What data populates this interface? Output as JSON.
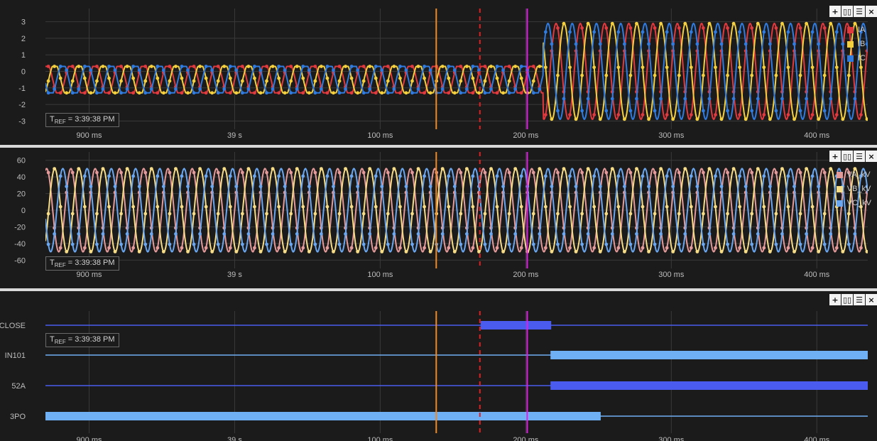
{
  "time_axis": {
    "ticks": [
      {
        "label": "900 ms",
        "t": -0.3
      },
      {
        "label": "39 s",
        "t": -0.2
      },
      {
        "label": "100 ms",
        "t": -0.1
      },
      {
        "label": "200 ms",
        "t": 0.0
      },
      {
        "label": "300 ms",
        "t": 0.1
      },
      {
        "label": "400 ms",
        "t": 0.2
      }
    ]
  },
  "tref_label_main": "T",
  "tref_label_sub": "REF",
  "tref_value": " = 3:39:38 PM",
  "controls": {
    "add": "+",
    "cols": "▯▯",
    "rows": "☰",
    "close": "×"
  },
  "cursors": [
    {
      "name": "cursor-orange",
      "t": -0.0615,
      "color": "#f08a24",
      "style": "solid"
    },
    {
      "name": "cursor-red",
      "t": -0.0315,
      "color": "#e02020",
      "style": "dashed"
    },
    {
      "name": "cursor-magenta",
      "t": 0.001,
      "color": "#e11de6",
      "style": "solid"
    }
  ],
  "chart_data": [
    {
      "type": "line",
      "name": "currents",
      "x_range": [
        -0.33,
        0.235
      ],
      "ylim": [
        -3.5,
        3.8
      ],
      "y_ticks": [
        3,
        2,
        1,
        0,
        -1,
        -2,
        -3
      ],
      "fault_time": 0.0,
      "series": [
        {
          "name": "IA",
          "color": "#e0393e",
          "pre_amp": 0.8,
          "pre_offset": -0.5,
          "post_amp": 2.9,
          "phase_deg": 0
        },
        {
          "name": "IB",
          "color": "#f4d03f",
          "pre_amp": 0.8,
          "pre_offset": -0.5,
          "post_amp": 2.9,
          "phase_deg": -120
        },
        {
          "name": "IC",
          "color": "#2f7be0",
          "pre_amp": 0.8,
          "pre_offset": -0.5,
          "post_amp": 2.9,
          "phase_deg": 120
        }
      ]
    },
    {
      "type": "line",
      "name": "voltages",
      "x_range": [
        -0.33,
        0.235
      ],
      "ylim": [
        -70,
        70
      ],
      "y_ticks": [
        60,
        40,
        20,
        0,
        -20,
        -40,
        -60
      ],
      "series": [
        {
          "name": "VA_kV",
          "color": "#e59a9a",
          "amp": 50,
          "phase_deg": 0
        },
        {
          "name": "VB_kV",
          "color": "#f6dc86",
          "amp": 50,
          "phase_deg": -120
        },
        {
          "name": "VC_kV",
          "color": "#6aa7f0",
          "amp": 50,
          "phase_deg": 120
        }
      ]
    },
    {
      "type": "digital",
      "name": "digital-channels",
      "x_range": [
        -0.33,
        0.235
      ],
      "channels": [
        {
          "name": "CLOSE",
          "color": "#4a5cf0",
          "high": [
            [
              -0.031,
              0.0175
            ]
          ]
        },
        {
          "name": "IN101",
          "color": "#6fb0f5",
          "high": [
            [
              0.017,
              0.235
            ]
          ]
        },
        {
          "name": "52A",
          "color": "#4a5cf0",
          "high": [
            [
              0.017,
              0.235
            ]
          ]
        },
        {
          "name": "3PO",
          "color": "#6fb0f5",
          "high": [
            [
              -0.33,
              0.0515
            ]
          ]
        }
      ]
    }
  ]
}
